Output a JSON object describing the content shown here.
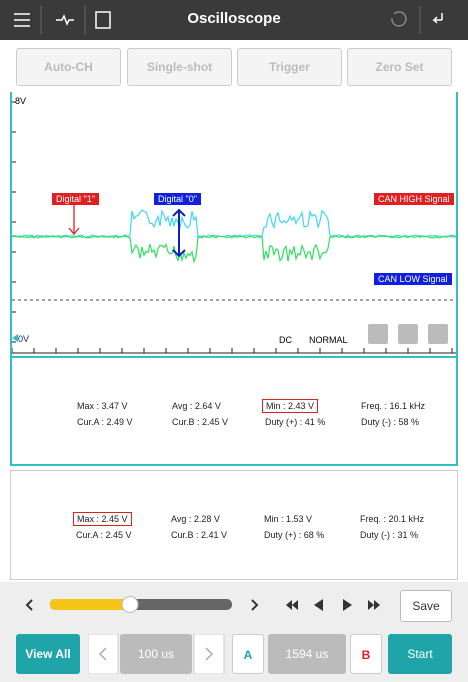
{
  "header": {
    "title": "Oscilloscope"
  },
  "toolbar": {
    "buttons": [
      "Auto-CH",
      "Single-shot",
      "Trigger",
      "Zero Set"
    ]
  },
  "scope": {
    "y_max_label": "8V",
    "y_min_label": "0V",
    "digital_1": "Digital \"1\"",
    "digital_0": "Digital \"0\"",
    "can_high": "CAN HIGH Signal",
    "can_low": "CAN LOW Signal",
    "coupling": "DC",
    "mode": "NORMAL"
  },
  "panels": [
    {
      "rows": [
        [
          "Max : 3.47 V",
          "Avg : 2.64 V",
          "Min : 2.43 V",
          "Freq. : 16.1 kHz"
        ],
        [
          "Cur.A : 2.49 V",
          "Cur.B : 2.45 V",
          "Duty (+) : 41 %",
          "Duty (-) : 58 %"
        ]
      ]
    },
    {
      "rows": [
        [
          "Max : 2.45 V",
          "Avg : 2.28 V",
          "Min : 1.53 V",
          "Freq. : 20.1 kHz"
        ],
        [
          "Cur.A : 2.45 V",
          "Cur.B : 2.41 V",
          "Duty (+) : 68 %",
          "Duty (-) : 31 %"
        ]
      ]
    }
  ],
  "controls": {
    "save": "Save",
    "view_all": "View All",
    "time_div": "100 us",
    "cursor_a": "A",
    "cursor_delta": "1594 us",
    "cursor_b": "B",
    "start": "Start"
  }
}
